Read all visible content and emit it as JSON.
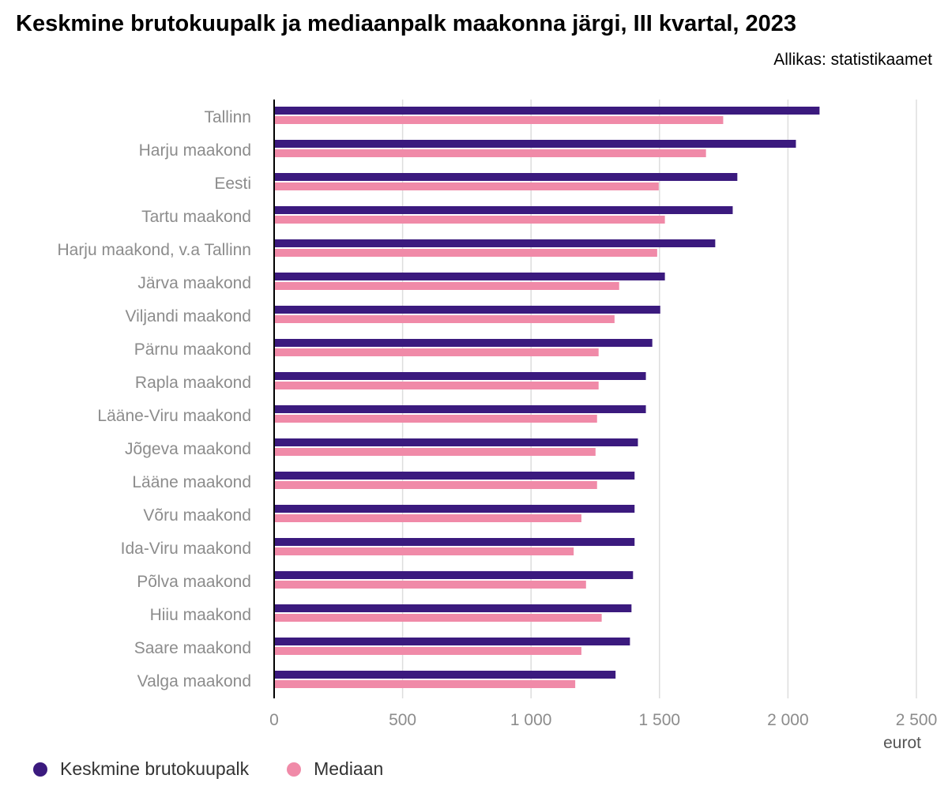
{
  "header": {
    "title": "Keskmine brutokuupalk ja mediaanpalk maakonna järgi, III kvartal, 2023",
    "source": "Allikas: statistikaamet"
  },
  "colors": {
    "avg": "#3b1a7e",
    "median": "#f08aa8",
    "grid": "#dddddd",
    "axis": "#000000"
  },
  "chart_data": {
    "type": "bar",
    "orientation": "horizontal",
    "categories": [
      "Tallinn",
      "Harju maakond",
      "Eesti",
      "Tartu maakond",
      "Harju maakond, v.a Tallinn",
      "Järva maakond",
      "Viljandi maakond",
      "Pärnu maakond",
      "Rapla maakond",
      "Lääne-Viru maakond",
      "Jõgeva maakond",
      "Lääne maakond",
      "Võru maakond",
      "Ida-Viru maakond",
      "Põlva maakond",
      "Hiiu maakond",
      "Saare maakond",
      "Valga maakond"
    ],
    "series": [
      {
        "name": "Keskmine brutokuupalk",
        "color": "#3b1a7e",
        "values": [
          2123,
          2031,
          1803,
          1785,
          1717,
          1521,
          1503,
          1472,
          1447,
          1447,
          1416,
          1403,
          1403,
          1403,
          1397,
          1391,
          1385,
          1329
        ]
      },
      {
        "name": "Mediaan",
        "color": "#f08aa8",
        "values": [
          1748,
          1681,
          1497,
          1521,
          1491,
          1343,
          1325,
          1263,
          1263,
          1257,
          1251,
          1257,
          1196,
          1166,
          1214,
          1275,
          1196,
          1172
        ]
      }
    ],
    "xlim": [
      0,
      2500
    ],
    "xticks": [
      0,
      500,
      1000,
      1500,
      2000,
      2500
    ],
    "xtick_labels": [
      "0",
      "500",
      "1 000",
      "1 500",
      "2 000",
      "2 500"
    ],
    "xlabel": "eurot",
    "grid": true,
    "legend_position": "bottom-left"
  }
}
